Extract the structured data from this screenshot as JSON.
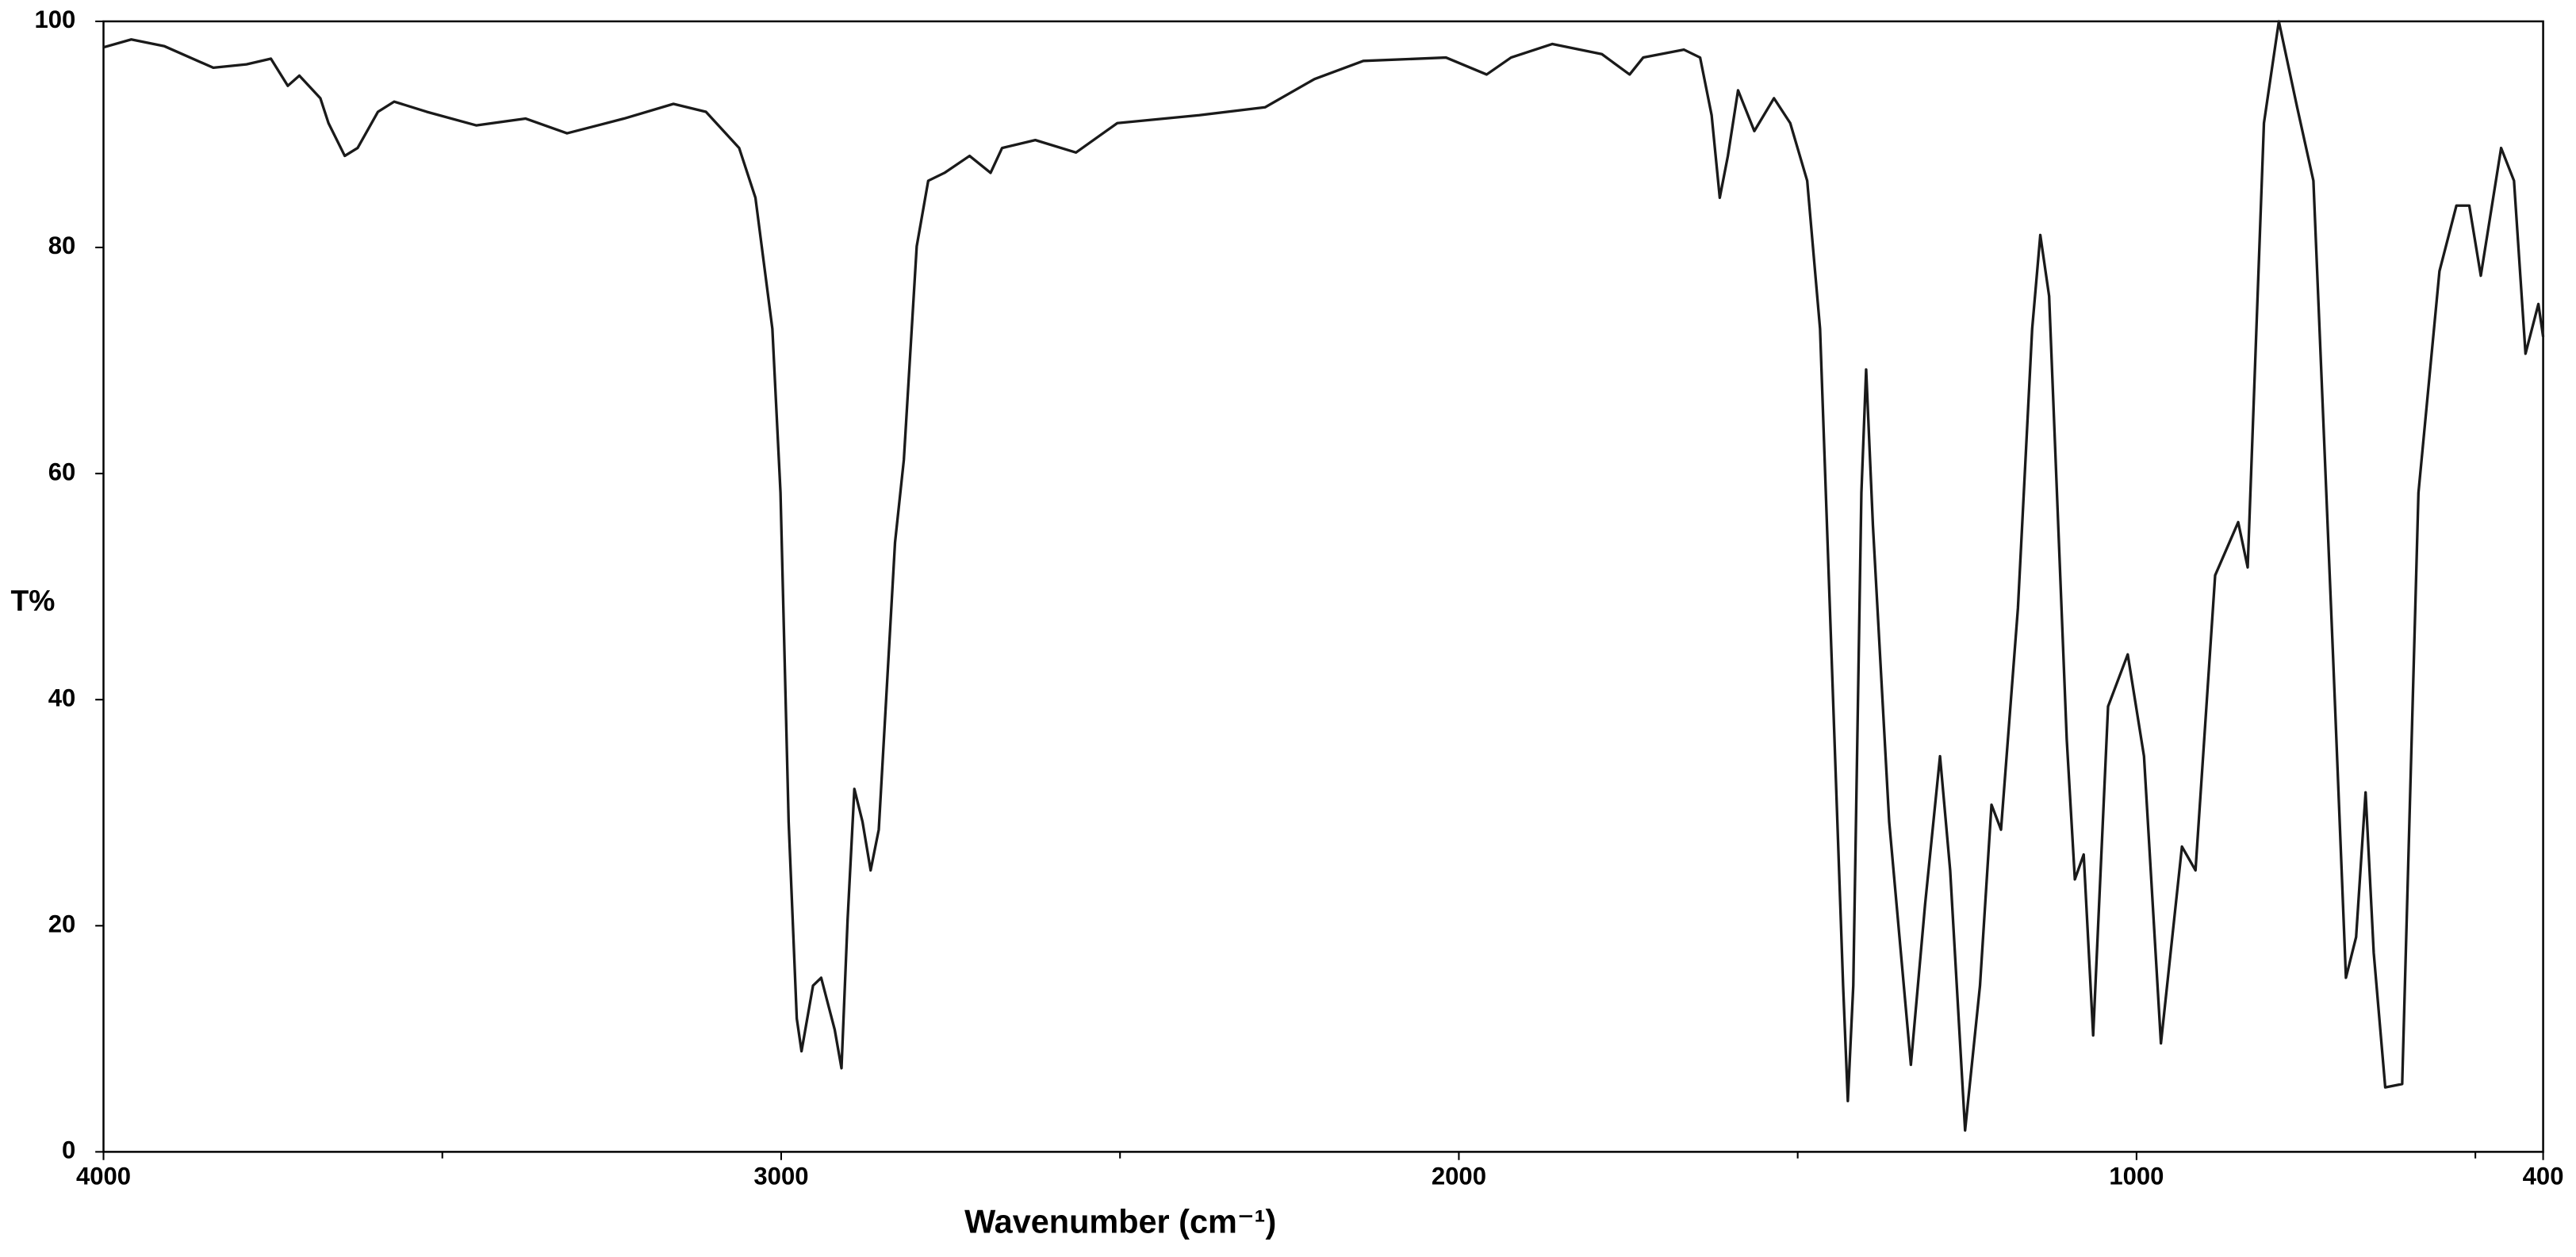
{
  "chart_data": {
    "type": "line",
    "x_label": "Wavenumber (cm⁻¹)",
    "y_label": "T%",
    "xlim": [
      4000,
      400
    ],
    "ylim": [
      0,
      100
    ],
    "xticks": [
      4000,
      3000,
      2000,
      1000,
      400
    ],
    "xminorticks": [
      3500,
      2500,
      1500,
      500
    ],
    "yticks": [
      0,
      20,
      40,
      60,
      80,
      100
    ],
    "color": "#1a1a1a",
    "x": [
      4000,
      3959,
      3910,
      3838,
      3789,
      3753,
      3728,
      3711,
      3680,
      3668,
      3644,
      3625,
      3595,
      3571,
      3523,
      3450,
      3377,
      3316,
      3232,
      3159,
      3111,
      3062,
      3038,
      3013,
      3001,
      2989,
      2977,
      2970,
      2953,
      2941,
      2921,
      2911,
      2902,
      2892,
      2880,
      2868,
      2856,
      2832,
      2819,
      2800,
      2783,
      2759,
      2722,
      2691,
      2674,
      2625,
      2565,
      2504,
      2383,
      2286,
      2213,
      2141,
      2019,
      1959,
      1923,
      1862,
      1789,
      1748,
      1728,
      1668,
      1644,
      1627,
      1615,
      1603,
      1588,
      1564,
      1535,
      1511,
      1486,
      1467,
      1450,
      1433,
      1426,
      1418,
      1406,
      1399,
      1389,
      1365,
      1333,
      1312,
      1290,
      1275,
      1253,
      1231,
      1214,
      1200,
      1175,
      1154,
      1142,
      1129,
      1103,
      1091,
      1078,
      1064,
      1042,
      1013,
      989,
      964,
      933,
      913,
      884,
      850,
      836,
      812,
      790,
      763,
      739,
      710,
      691,
      676,
      662,
      650,
      633,
      608,
      584,
      553,
      528,
      509,
      492,
      462,
      443,
      426,
      407,
      400
    ],
    "values": [
      97.7,
      98.4,
      97.8,
      95.9,
      96.2,
      96.7,
      94.3,
      95.2,
      93.2,
      91.0,
      88.1,
      88.8,
      92.0,
      92.9,
      92.0,
      90.8,
      91.4,
      90.1,
      91.4,
      92.7,
      92.0,
      88.8,
      84.4,
      72.8,
      58.3,
      29.2,
      11.8,
      8.9,
      14.7,
      15.4,
      10.8,
      7.4,
      20.5,
      32.1,
      29.2,
      24.9,
      28.5,
      53.9,
      61.2,
      80.1,
      85.9,
      86.6,
      88.1,
      86.6,
      88.8,
      89.5,
      88.4,
      91.0,
      91.7,
      92.4,
      94.9,
      96.5,
      96.8,
      95.3,
      96.8,
      98.0,
      97.1,
      95.3,
      96.8,
      97.5,
      96.8,
      91.7,
      84.4,
      88.1,
      93.9,
      90.3,
      93.2,
      91.0,
      85.9,
      72.8,
      43.8,
      14.7,
      4.5,
      14.7,
      58.3,
      69.2,
      55.4,
      29.2,
      7.7,
      21.9,
      35.0,
      24.9,
      1.9,
      14.7,
      30.7,
      28.5,
      48.1,
      72.8,
      81.1,
      75.7,
      36.5,
      24.1,
      26.3,
      10.3,
      39.4,
      44.0,
      35.0,
      9.6,
      27.0,
      24.9,
      51.0,
      55.7,
      51.7,
      91.0,
      100,
      92.4,
      85.9,
      43.8,
      15.4,
      19.0,
      31.8,
      17.6,
      5.7,
      6.0,
      58.3,
      77.9,
      83.7,
      83.7,
      77.5,
      88.8,
      85.9,
      70.6,
      75.0,
      72.1
    ]
  }
}
